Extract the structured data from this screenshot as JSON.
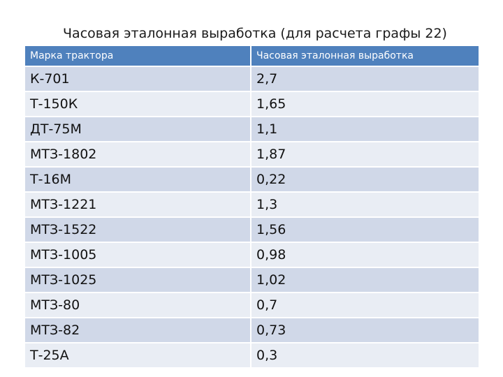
{
  "title": "Часовая эталонная выработка (для расчета графы 22)",
  "table": {
    "headers": [
      "Марка трактора",
      "Часовая эталонная выработка"
    ],
    "rows": [
      [
        "К-701",
        "2,7"
      ],
      [
        "Т-150К",
        "1,65"
      ],
      [
        "ДТ-75М",
        "1,1"
      ],
      [
        "МТЗ-1802",
        "1,87"
      ],
      [
        "Т-16М",
        "0,22"
      ],
      [
        "МТЗ-1221",
        "1,3"
      ],
      [
        "МТЗ-1522",
        "1,56"
      ],
      [
        "МТЗ-1005",
        "0,98"
      ],
      [
        "МТЗ-1025",
        "1,02"
      ],
      [
        "МТЗ-80",
        "0,7"
      ],
      [
        "МТЗ-82",
        "0,73"
      ],
      [
        "Т-25А",
        "0,3"
      ]
    ]
  },
  "colors": {
    "header_bg": "#4f81bd",
    "row_odd": "#d0d8e8",
    "row_even": "#e9edf4"
  }
}
